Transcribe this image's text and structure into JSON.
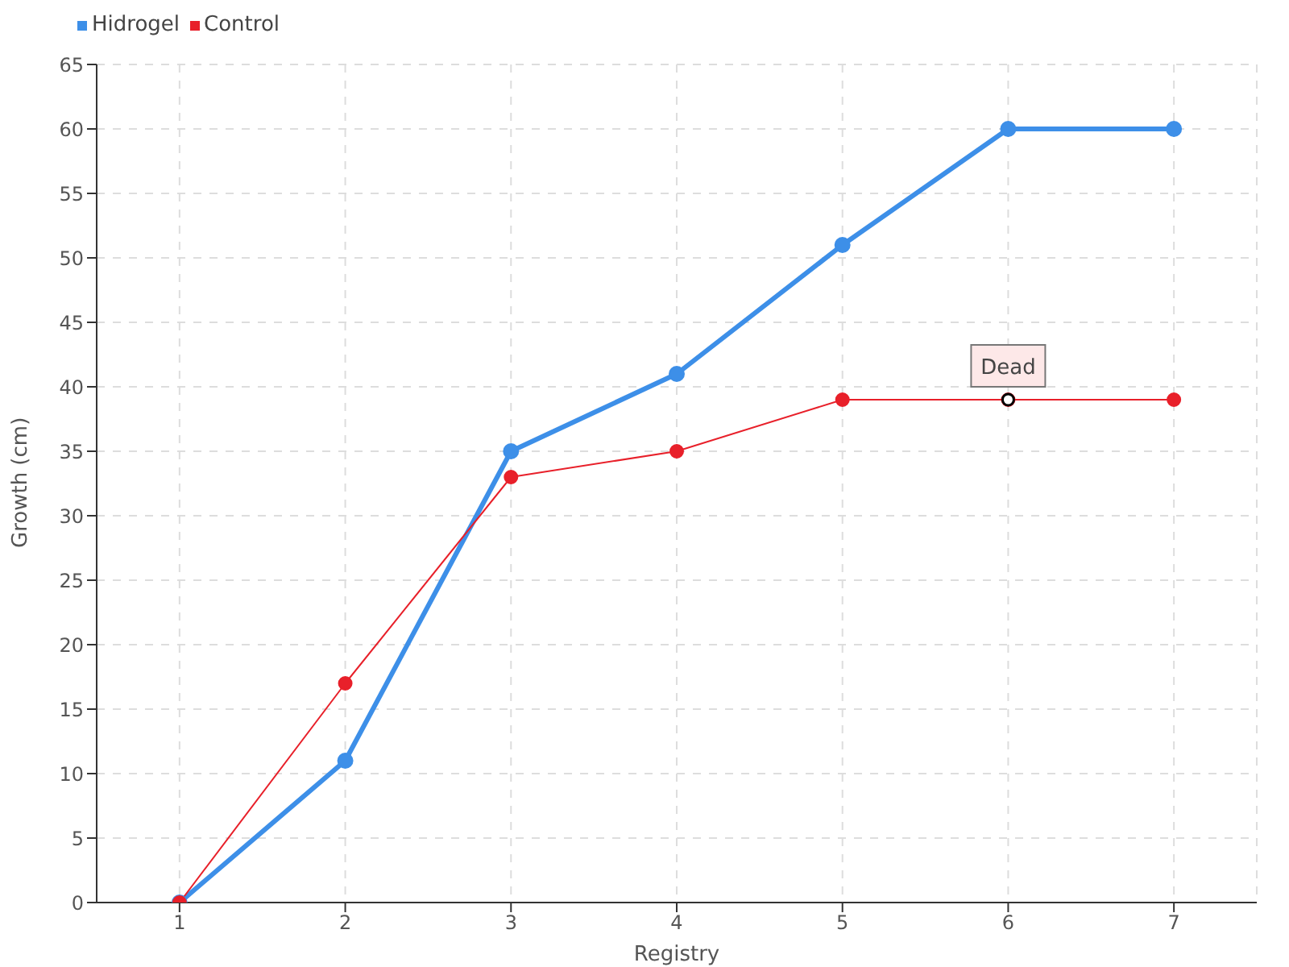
{
  "chart_data": {
    "type": "line",
    "xlabel": "Registry",
    "ylabel": "Growth (cm)",
    "x": [
      1,
      2,
      3,
      4,
      5,
      6,
      7
    ],
    "series": [
      {
        "name": "Hidrogel",
        "color": "#3d8fe8",
        "values": [
          0,
          11,
          35,
          41,
          51,
          60,
          60
        ]
      },
      {
        "name": "Control",
        "color": "#e8202a",
        "values": [
          0,
          17,
          33,
          35,
          39,
          39,
          39
        ]
      }
    ],
    "xlim": [
      0.5,
      7.5
    ],
    "xticks": [
      1,
      2,
      3,
      4,
      5,
      6,
      7
    ],
    "ylim": [
      0,
      65
    ],
    "yticks": [
      0,
      5,
      10,
      15,
      20,
      25,
      30,
      35,
      40,
      45,
      50,
      55,
      60,
      65
    ],
    "annotations": [
      {
        "text": "Dead",
        "x": 6,
        "y": 39
      }
    ],
    "grid": true,
    "legend": "top left",
    "marker": "circle",
    "line_style": "solid"
  }
}
